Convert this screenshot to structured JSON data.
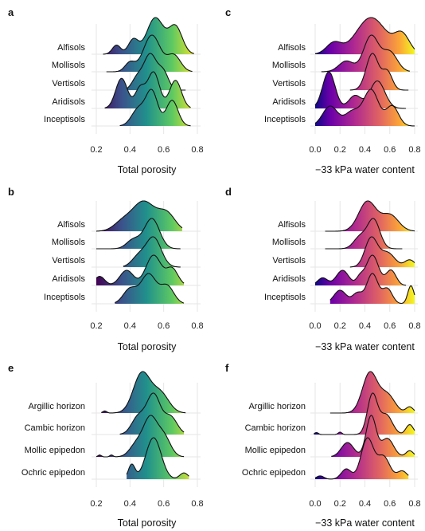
{
  "chart_data": [
    {
      "type": "ridgeline",
      "panel": "a",
      "xlabel": "Total porosity",
      "xticks": [
        0.2,
        0.4,
        0.6,
        0.8
      ],
      "xlim": [
        0.15,
        0.85
      ],
      "palette": "viridis",
      "categories": [
        "Alfisols",
        "Mollisols",
        "Vertisols",
        "Aridisols",
        "Inceptisols"
      ],
      "series": [
        {
          "category": "Alfisols",
          "peaks": [
            [
              0.32,
              0.025,
              0.25
            ],
            [
              0.42,
              0.03,
              0.4
            ],
            [
              0.55,
              0.05,
              1.0
            ],
            [
              0.67,
              0.04,
              0.75
            ]
          ],
          "range": [
            0.24,
            0.78
          ]
        },
        {
          "category": "Mollisols",
          "peaks": [
            [
              0.4,
              0.03,
              0.25
            ],
            [
              0.53,
              0.05,
              1.0
            ],
            [
              0.66,
              0.04,
              0.45
            ]
          ],
          "range": [
            0.26,
            0.77
          ]
        },
        {
          "category": "Vertisols",
          "peaks": [
            [
              0.44,
              0.03,
              0.3
            ],
            [
              0.52,
              0.04,
              1.0
            ],
            [
              0.6,
              0.03,
              0.45
            ]
          ],
          "range": [
            0.32,
            0.73
          ]
        },
        {
          "category": "Aridisols",
          "peaks": [
            [
              0.35,
              0.035,
              0.75
            ],
            [
              0.46,
              0.03,
              0.5
            ],
            [
              0.54,
              0.035,
              0.9
            ],
            [
              0.67,
              0.035,
              0.7
            ]
          ],
          "range": [
            0.25,
            0.76
          ]
        },
        {
          "category": "Inceptisols",
          "peaks": [
            [
              0.45,
              0.04,
              0.5
            ],
            [
              0.53,
              0.035,
              1.0
            ],
            [
              0.65,
              0.035,
              0.75
            ]
          ],
          "range": [
            0.34,
            0.76
          ]
        }
      ]
    },
    {
      "type": "ridgeline",
      "panel": "c",
      "xlabel": "−33 kPa water content",
      "xticks": [
        0.0,
        0.2,
        0.4,
        0.6,
        0.8
      ],
      "xlim": [
        -0.05,
        0.85
      ],
      "palette": "plasma",
      "categories": [
        "Alfisols",
        "Mollisols",
        "Vertisols",
        "Aridisols",
        "Inceptisols"
      ],
      "series": [
        {
          "category": "Alfisols",
          "peaks": [
            [
              0.15,
              0.06,
              0.3
            ],
            [
              0.45,
              0.12,
              1.0
            ],
            [
              0.7,
              0.06,
              0.5
            ]
          ],
          "range": [
            0.0,
            0.8
          ]
        },
        {
          "category": "Mollisols",
          "peaks": [
            [
              0.25,
              0.06,
              0.3
            ],
            [
              0.45,
              0.06,
              1.0
            ],
            [
              0.6,
              0.06,
              0.55
            ]
          ],
          "range": [
            0.05,
            0.76
          ]
        },
        {
          "category": "Vertisols",
          "peaks": [
            [
              0.46,
              0.05,
              1.0
            ],
            [
              0.58,
              0.04,
              0.5
            ]
          ],
          "range": [
            0.28,
            0.75
          ]
        },
        {
          "category": "Aridisols",
          "peaks": [
            [
              0.11,
              0.05,
              1.0
            ],
            [
              0.32,
              0.05,
              0.35
            ],
            [
              0.5,
              0.06,
              0.75
            ]
          ],
          "range": [
            0.0,
            0.73
          ]
        },
        {
          "category": "Inceptisols",
          "peaks": [
            [
              0.12,
              0.06,
              0.55
            ],
            [
              0.3,
              0.06,
              0.4
            ],
            [
              0.45,
              0.06,
              1.0
            ],
            [
              0.62,
              0.05,
              0.55
            ]
          ],
          "range": [
            0.0,
            0.8
          ]
        }
      ]
    },
    {
      "type": "ridgeline",
      "panel": "b",
      "xlabel": "Total porosity",
      "xticks": [
        0.2,
        0.4,
        0.6,
        0.8
      ],
      "xlim": [
        0.15,
        0.85
      ],
      "palette": "viridis",
      "categories": [
        "Alfisols",
        "Mollisols",
        "Vertisols",
        "Aridisols",
        "Inceptisols"
      ],
      "series": [
        {
          "category": "Alfisols",
          "peaks": [
            [
              0.35,
              0.05,
              0.25
            ],
            [
              0.48,
              0.07,
              1.0
            ],
            [
              0.62,
              0.05,
              0.55
            ]
          ],
          "range": [
            0.2,
            0.71
          ]
        },
        {
          "category": "Mollisols",
          "peaks": [
            [
              0.42,
              0.04,
              0.3
            ],
            [
              0.53,
              0.045,
              1.0
            ]
          ],
          "range": [
            0.2,
            0.7
          ]
        },
        {
          "category": "Vertisols",
          "peaks": [
            [
              0.45,
              0.04,
              0.35
            ],
            [
              0.54,
              0.045,
              1.0
            ]
          ],
          "range": [
            0.36,
            0.7
          ]
        },
        {
          "category": "Aridisols",
          "peaks": [
            [
              0.22,
              0.03,
              0.3
            ],
            [
              0.38,
              0.04,
              0.5
            ],
            [
              0.54,
              0.045,
              1.0
            ],
            [
              0.65,
              0.035,
              0.55
            ]
          ],
          "range": [
            0.2,
            0.72
          ]
        },
        {
          "category": "Inceptisols",
          "peaks": [
            [
              0.4,
              0.04,
              0.5
            ],
            [
              0.51,
              0.045,
              1.0
            ],
            [
              0.62,
              0.04,
              0.6
            ]
          ],
          "range": [
            0.31,
            0.72
          ]
        }
      ]
    },
    {
      "type": "ridgeline",
      "panel": "d",
      "xlabel": "−33 kPa water content",
      "xticks": [
        0.0,
        0.2,
        0.4,
        0.6,
        0.8
      ],
      "xlim": [
        -0.05,
        0.85
      ],
      "palette": "plasma",
      "categories": [
        "Alfisols",
        "Mollisols",
        "Vertisols",
        "Aridisols",
        "Inceptisols"
      ],
      "series": [
        {
          "category": "Alfisols",
          "peaks": [
            [
              0.42,
              0.07,
              1.0
            ],
            [
              0.6,
              0.07,
              0.55
            ]
          ],
          "range": [
            0.08,
            0.8
          ]
        },
        {
          "category": "Mollisols",
          "peaks": [
            [
              0.36,
              0.05,
              0.4
            ],
            [
              0.47,
              0.05,
              1.0
            ]
          ],
          "range": [
            0.08,
            0.7
          ]
        },
        {
          "category": "Vertisols",
          "peaks": [
            [
              0.45,
              0.05,
              1.0
            ],
            [
              0.58,
              0.06,
              0.5
            ],
            [
              0.76,
              0.04,
              0.25
            ]
          ],
          "range": [
            0.28,
            0.8
          ]
        },
        {
          "category": "Aridisols",
          "peaks": [
            [
              0.06,
              0.04,
              0.25
            ],
            [
              0.22,
              0.05,
              0.5
            ],
            [
              0.36,
              0.03,
              0.25
            ],
            [
              0.46,
              0.05,
              1.0
            ],
            [
              0.61,
              0.04,
              0.5
            ]
          ],
          "range": [
            0.0,
            0.73
          ]
        },
        {
          "category": "Inceptisols",
          "peaks": [
            [
              0.2,
              0.05,
              0.45
            ],
            [
              0.34,
              0.04,
              0.35
            ],
            [
              0.46,
              0.045,
              1.0
            ],
            [
              0.58,
              0.04,
              0.5
            ],
            [
              0.77,
              0.025,
              0.6
            ]
          ],
          "range": [
            0.12,
            0.8
          ]
        }
      ]
    },
    {
      "type": "ridgeline",
      "panel": "e",
      "xlabel": "Total porosity",
      "xticks": [
        0.2,
        0.4,
        0.6,
        0.8
      ],
      "xlim": [
        0.15,
        0.85
      ],
      "palette": "viridis",
      "categories": [
        "Argillic horizon",
        "Cambic horizon",
        "Mollic epipedon",
        "Ochric epipedon"
      ],
      "series": [
        {
          "category": "Argillic horizon",
          "peaks": [
            [
              0.25,
              0.012,
              0.05
            ],
            [
              0.47,
              0.05,
              1.0
            ],
            [
              0.58,
              0.05,
              0.5
            ]
          ],
          "range": [
            0.23,
            0.73
          ]
        },
        {
          "category": "Cambic horizon",
          "peaks": [
            [
              0.45,
              0.04,
              0.45
            ],
            [
              0.54,
              0.04,
              1.0
            ],
            [
              0.64,
              0.04,
              0.45
            ]
          ],
          "range": [
            0.34,
            0.72
          ]
        },
        {
          "category": "Mollic epipedon",
          "peaks": [
            [
              0.22,
              0.01,
              0.05
            ],
            [
              0.29,
              0.01,
              0.05
            ],
            [
              0.44,
              0.04,
              0.35
            ],
            [
              0.52,
              0.04,
              1.0
            ],
            [
              0.6,
              0.04,
              0.55
            ]
          ],
          "range": [
            0.2,
            0.72
          ]
        },
        {
          "category": "Ochric epipedon",
          "peaks": [
            [
              0.41,
              0.02,
              0.35
            ],
            [
              0.54,
              0.045,
              1.0
            ],
            [
              0.72,
              0.025,
              0.15
            ]
          ],
          "range": [
            0.38,
            0.75
          ]
        }
      ]
    },
    {
      "type": "ridgeline",
      "panel": "f",
      "xlabel": "−33 kPa water content",
      "xticks": [
        0.0,
        0.2,
        0.4,
        0.6,
        0.8
      ],
      "xlim": [
        -0.05,
        0.85
      ],
      "palette": "plasma",
      "categories": [
        "Argillic horizon",
        "Cambic horizon",
        "Mollic epipedon",
        "Ochric epipedon"
      ],
      "series": [
        {
          "category": "Argillic horizon",
          "peaks": [
            [
              0.44,
              0.06,
              1.0
            ],
            [
              0.58,
              0.06,
              0.45
            ],
            [
              0.76,
              0.03,
              0.15
            ]
          ],
          "range": [
            0.12,
            0.8
          ]
        },
        {
          "category": "Cambic horizon",
          "peaks": [
            [
              0.01,
              0.015,
              0.05
            ],
            [
              0.2,
              0.015,
              0.06
            ],
            [
              0.46,
              0.04,
              1.0
            ],
            [
              0.57,
              0.05,
              0.5
            ],
            [
              0.76,
              0.03,
              0.25
            ]
          ],
          "range": [
            -0.01,
            0.8
          ]
        },
        {
          "category": "Mollic epipedon",
          "peaks": [
            [
              0.26,
              0.05,
              0.35
            ],
            [
              0.45,
              0.04,
              1.0
            ],
            [
              0.58,
              0.05,
              0.45
            ],
            [
              0.76,
              0.03,
              0.15
            ]
          ],
          "range": [
            0.13,
            0.8
          ]
        },
        {
          "category": "Ochric epipedon",
          "peaks": [
            [
              0.04,
              0.03,
              0.08
            ],
            [
              0.25,
              0.04,
              0.25
            ],
            [
              0.42,
              0.05,
              1.0
            ],
            [
              0.55,
              0.05,
              0.55
            ],
            [
              0.7,
              0.04,
              0.2
            ]
          ],
          "range": [
            0.0,
            0.75
          ]
        }
      ]
    }
  ]
}
